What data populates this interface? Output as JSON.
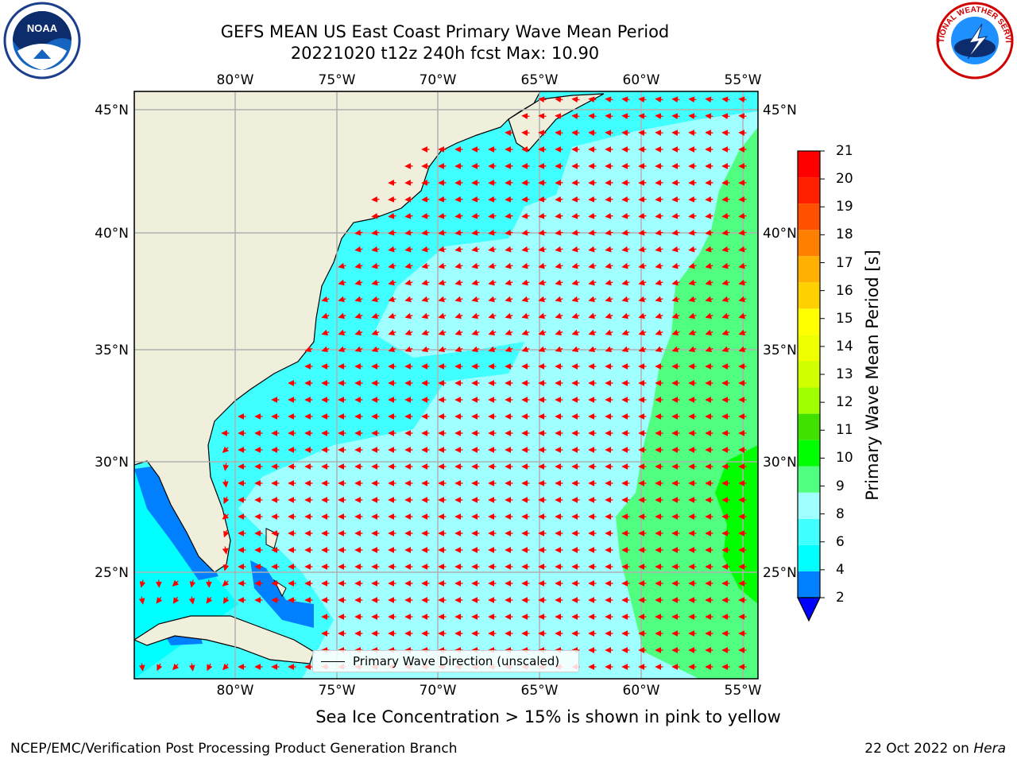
{
  "title_line1": "GEFS MEAN US East Coast Primary Wave Mean Period",
  "title_line2": "20221020 t12z 240h fcst   Max: 10.90",
  "logos": {
    "left": "NOAA",
    "right": "NATIONAL WEATHER SERVICE"
  },
  "map": {
    "lon_labels": [
      "80°W",
      "75°W",
      "70°W",
      "65°W",
      "60°W",
      "55°W"
    ],
    "lat_labels": [
      "45°N",
      "40°N",
      "35°N",
      "30°N",
      "25°N"
    ],
    "lon_range": [
      -85,
      -54.7
    ],
    "lat_range": [
      20.4,
      46
    ],
    "grid": true,
    "arrow_color": "#ff0000",
    "land_color": "#efefdc",
    "legend_label": "Primary Wave Direction (unscaled)"
  },
  "colorbar": {
    "title": "Primary Wave Mean Period [s]",
    "ticks": [
      "21",
      "20",
      "19",
      "18",
      "17",
      "16",
      "15",
      "14",
      "13",
      "12",
      "11",
      "10",
      "9",
      "8",
      "6",
      "4",
      "2"
    ],
    "colors": [
      "#0000ff",
      "#0080ff",
      "#00ffff",
      "#40ffff",
      "#a0ffff",
      "#50ff80",
      "#00ff00",
      "#40e000",
      "#a0ff00",
      "#d0ff00",
      "#f0ff00",
      "#ffff00",
      "#ffd000",
      "#ffb000",
      "#ff8000",
      "#ff5000",
      "#ff2000",
      "#ff0000"
    ]
  },
  "caption": "Sea Ice Concentration > 15% is shown in pink to yellow",
  "footer_left": "NCEP/EMC/Verification Post Processing Product Generation Branch",
  "footer_date": "22 Oct 2022 on ",
  "footer_host": "Hera"
}
